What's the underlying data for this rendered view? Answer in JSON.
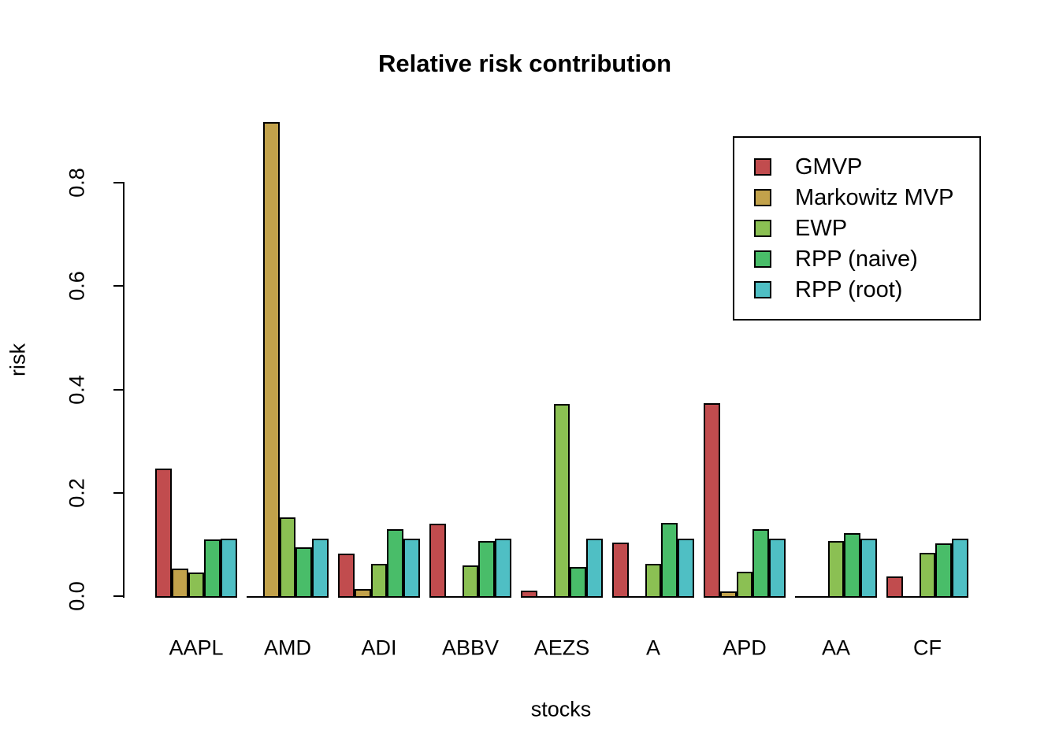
{
  "title": {
    "text": "Relative risk contribution"
  },
  "axes": {
    "x": {
      "label": "stocks"
    },
    "y": {
      "label": "risk",
      "tick_labels": [
        "0.0",
        "0.2",
        "0.4",
        "0.6",
        "0.8"
      ]
    }
  },
  "legend": {
    "position": "top-right",
    "items": [
      "GMVP",
      "Markowitz MVP",
      "EWP",
      "RPP (naive)",
      "RPP (root)"
    ]
  },
  "chart_data": {
    "type": "bar",
    "title": "Relative risk contribution",
    "xlabel": "stocks",
    "ylabel": "risk",
    "ylim": [
      0,
      0.93
    ],
    "grid": false,
    "legend_position": "top-right",
    "bar_border_color": "#000000",
    "background_color": "#ffffff",
    "y_ticks": [
      0.0,
      0.2,
      0.4,
      0.6,
      0.8
    ],
    "y_tick_labels": [
      "0.0",
      "0.2",
      "0.4",
      "0.6",
      "0.8"
    ],
    "categories": [
      "AAPL",
      "AMD",
      "ADI",
      "ABBV",
      "AEZS",
      "A",
      "APD",
      "AA",
      "CF"
    ],
    "series": [
      {
        "name": "GMVP",
        "color": "#C14C4E",
        "values": [
          0.247,
          0.001,
          0.082,
          0.14,
          0.01,
          0.104,
          0.374,
          0.0,
          0.038
        ]
      },
      {
        "name": "Markowitz MVP",
        "color": "#C2A24B",
        "values": [
          0.053,
          0.917,
          0.014,
          0.0,
          0.0,
          0.0,
          0.009,
          0.0,
          0.0
        ]
      },
      {
        "name": "EWP",
        "color": "#8BC053",
        "values": [
          0.046,
          0.152,
          0.062,
          0.06,
          0.372,
          0.062,
          0.047,
          0.106,
          0.084
        ]
      },
      {
        "name": "RPP (naive)",
        "color": "#49BD69",
        "values": [
          0.109,
          0.094,
          0.13,
          0.107,
          0.056,
          0.142,
          0.13,
          0.122,
          0.102
        ]
      },
      {
        "name": "RPP (root)",
        "color": "#4FBFC4",
        "values": [
          0.111,
          0.111,
          0.111,
          0.111,
          0.111,
          0.111,
          0.111,
          0.111,
          0.111
        ]
      }
    ]
  }
}
